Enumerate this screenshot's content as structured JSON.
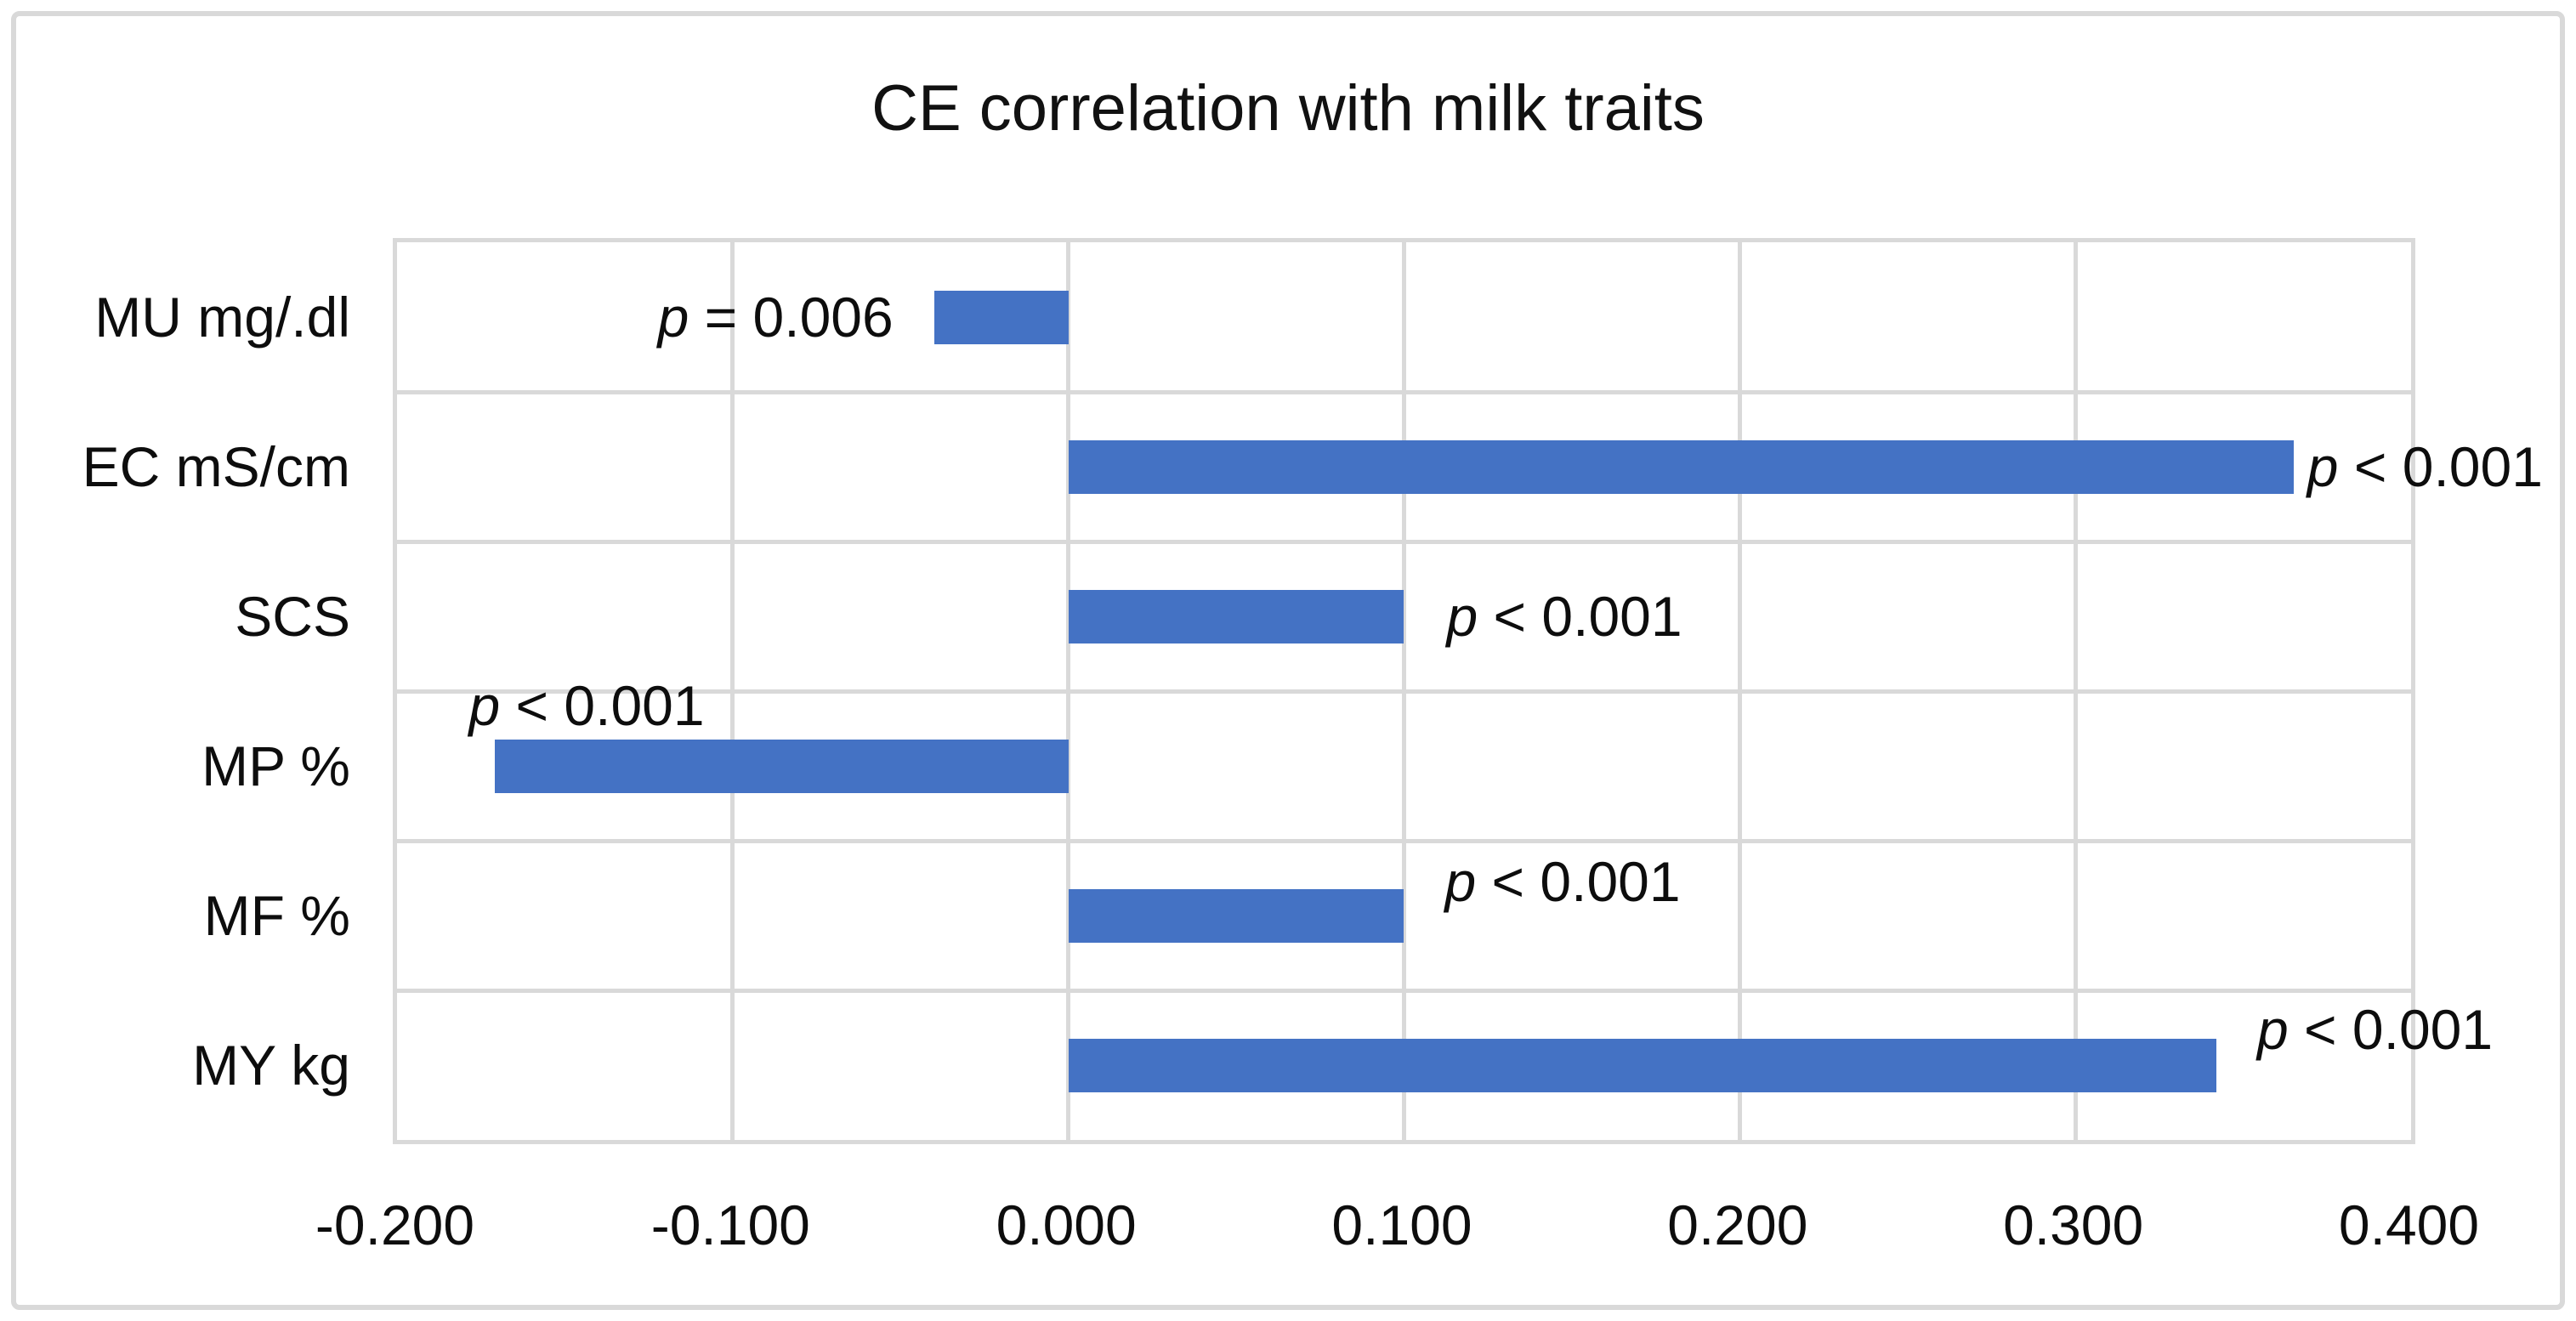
{
  "title": "CE correlation with milk traits",
  "colors": {
    "bar": "#4472c4",
    "grid": "#d9d9d9",
    "text": "#0d0d0d",
    "frame": "#d9d9d9",
    "background": "#ffffff"
  },
  "chart_data": {
    "type": "bar",
    "orientation": "horizontal",
    "title": "CE correlation with milk traits",
    "categories": [
      "MU mg/.dl",
      "EC mS/cm",
      "SCS",
      "MP %",
      "MF %",
      "MY kg"
    ],
    "values": [
      -0.04,
      0.365,
      0.1,
      -0.171,
      0.1,
      0.342
    ],
    "p_labels": [
      "p = 0.006",
      "p < 0.001",
      "p < 0.001",
      "p < 0.001",
      "p < 0.001",
      "p < 0.001"
    ],
    "xlabel": "",
    "ylabel": "",
    "xlim": [
      -0.2,
      0.4
    ],
    "x_ticks": [
      "-0.200",
      "-0.100",
      "0.000",
      "0.100",
      "0.200",
      "0.300",
      "0.400"
    ],
    "x_tick_values": [
      -0.2,
      -0.1,
      0.0,
      0.1,
      0.2,
      0.3,
      0.4
    ],
    "grid": true,
    "legend": false,
    "label_layout": [
      {
        "side": "left",
        "dy": 0,
        "gap": 48
      },
      {
        "side": "right",
        "dy": 0,
        "gap": 16
      },
      {
        "side": "right",
        "dy": 0,
        "gap": 50
      },
      {
        "side": "above",
        "dy": 0,
        "gap": -30
      },
      {
        "side": "right",
        "dy": -40,
        "gap": 48
      },
      {
        "side": "right",
        "dy": -42,
        "gap": 48
      }
    ]
  }
}
